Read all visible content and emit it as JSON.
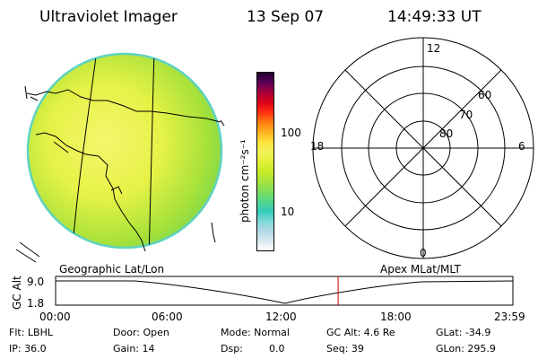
{
  "header": {
    "instrument": "Ultraviolet Imager",
    "date": "13 Sep 07",
    "time": "14:49:33 UT"
  },
  "colorbar": {
    "unit_label": "photon cm⁻²s⁻¹",
    "ticks": [
      "100",
      "10"
    ],
    "colors": [
      "#ffffff",
      "#d8e8ef",
      "#b0d8e4",
      "#7ad8d8",
      "#33ccbb",
      "#55d88a",
      "#7ee05a",
      "#a6e43c",
      "#c8ec28",
      "#e2f038",
      "#f4f25a",
      "#ffe23a",
      "#ffb020",
      "#ff7a10",
      "#ff3010",
      "#dd0018",
      "#a8003c",
      "#5a0058",
      "#220030"
    ]
  },
  "polar_plot": {
    "clock_labels": {
      "top": "12",
      "left": "18",
      "right": "6",
      "bottom": "0"
    },
    "lat_labels": [
      "60",
      "70",
      "80"
    ]
  },
  "timeline": {
    "left_label": "Geographic Lat/Lon",
    "right_label": "Apex MLat/MLT",
    "y_label": "GC Alt",
    "y_ticks": [
      "9.0",
      "1.8"
    ],
    "x_ticks": [
      "00:00",
      "06:00",
      "12:00",
      "18:00",
      "23:59"
    ],
    "marker_time": "14:49"
  },
  "info": {
    "flt": "Flt: LBHL",
    "ip": "IP: 36.0",
    "door": "Door: Open",
    "gain": "Gain: 14",
    "mode": "Mode: Normal",
    "dsp_label": "Dsp:",
    "dsp_value": "0.0",
    "gc_alt": "GC Alt: 4.6 Re",
    "seq": "Seq: 39",
    "glat": "GLat: -34.9",
    "glon": "GLon: 295.9"
  }
}
